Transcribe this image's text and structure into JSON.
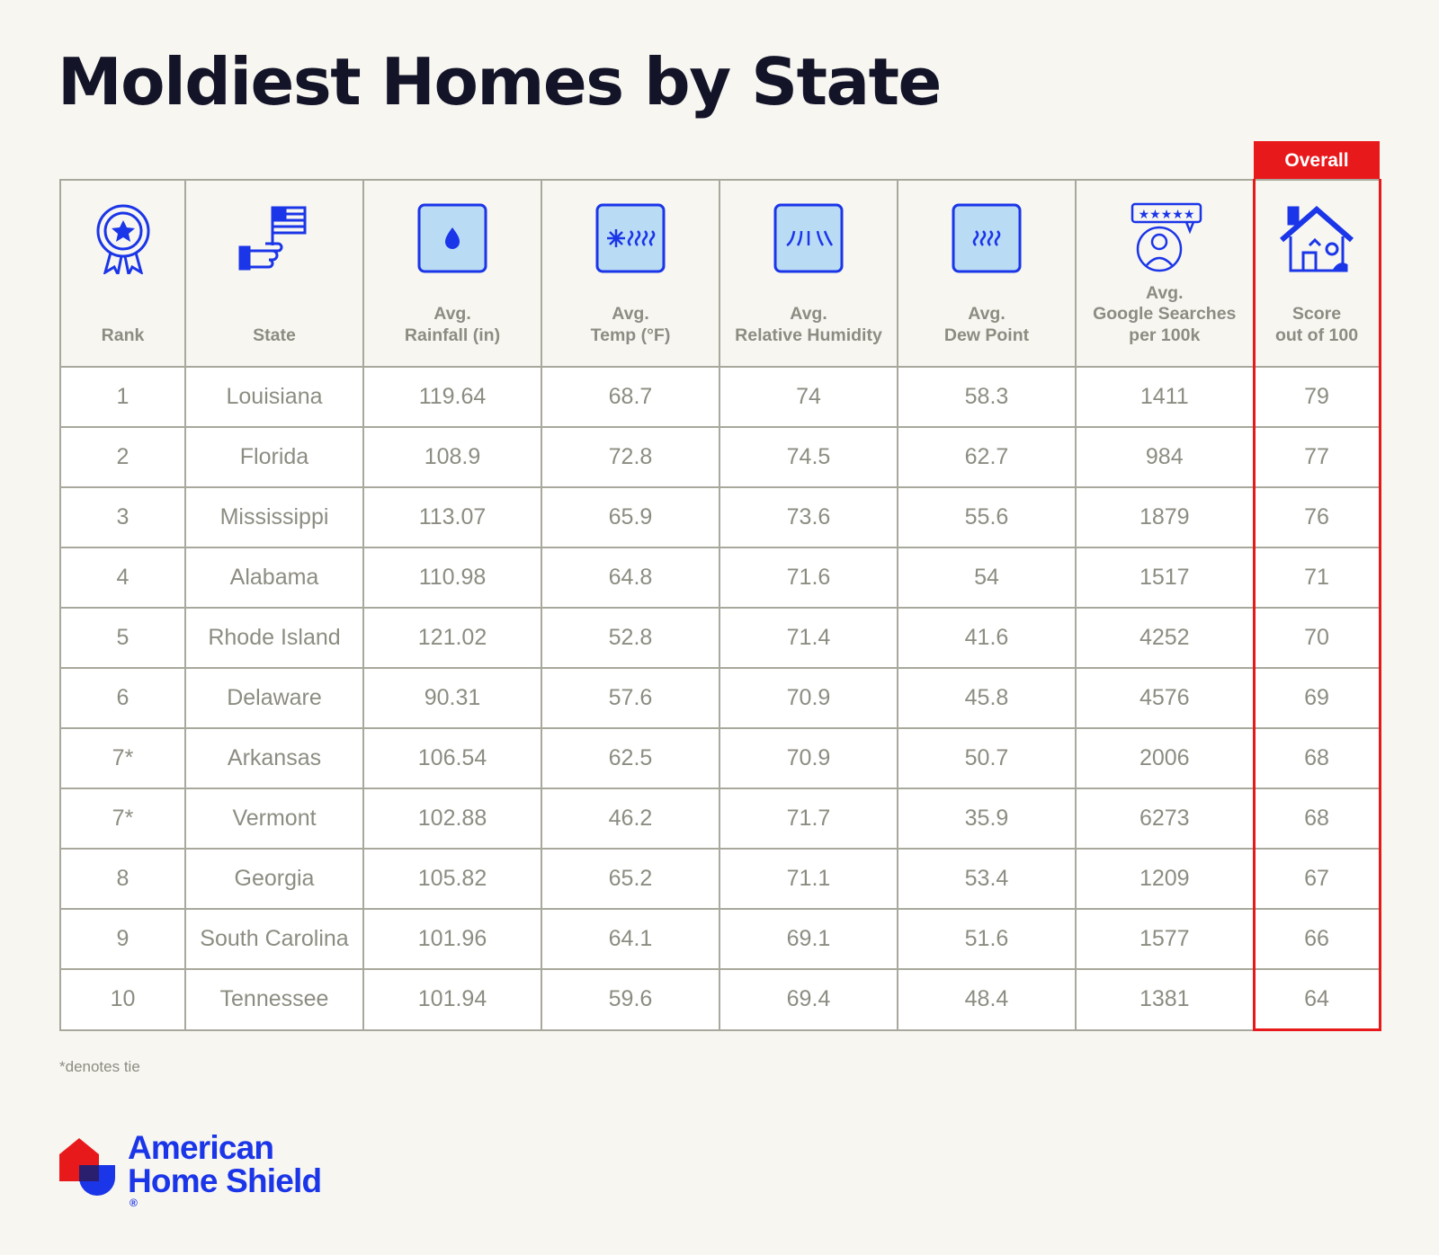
{
  "title": "Moldiest Homes by State",
  "overall_label": "Overall",
  "footnote": "*denotes tie",
  "brand": {
    "line1": "American",
    "line2": "Home Shield",
    "mark": "®"
  },
  "colors": {
    "accent_red": "#e8191b",
    "brand_blue": "#1b35e8",
    "icon_fill": "#b9dcf4"
  },
  "columns": [
    {
      "icon": "award-ribbon-icon",
      "lines": [
        "Rank"
      ]
    },
    {
      "icon": "hand-flag-icon",
      "lines": [
        "State"
      ]
    },
    {
      "icon": "raindrop-icon",
      "lines": [
        "Avg.",
        "Rainfall (in)"
      ]
    },
    {
      "icon": "sun-heat-icon",
      "lines": [
        "Avg.",
        "Temp (°F)"
      ]
    },
    {
      "icon": "humidity-icon",
      "lines": [
        "Avg.",
        "Relative Humidity"
      ]
    },
    {
      "icon": "heat-waves-icon",
      "lines": [
        "Avg.",
        "Dew Point"
      ]
    },
    {
      "icon": "review-person-icon",
      "lines": [
        "Avg.",
        "Google Searches",
        "per 100k"
      ]
    },
    {
      "icon": "house-icon",
      "lines": [
        "Score",
        "out of 100"
      ]
    }
  ],
  "chart_data": {
    "type": "table",
    "title": "Moldiest Homes by State",
    "headers": [
      "Rank",
      "State",
      "Avg. Rainfall (in)",
      "Avg. Temp (°F)",
      "Avg. Relative Humidity",
      "Avg. Dew Point",
      "Avg. Google Searches per 100k",
      "Score out of 100"
    ],
    "rows": [
      [
        "1",
        "Louisiana",
        "119.64",
        "68.7",
        "74",
        "58.3",
        "1411",
        "79"
      ],
      [
        "2",
        "Florida",
        "108.9",
        "72.8",
        "74.5",
        "62.7",
        "984",
        "77"
      ],
      [
        "3",
        "Mississippi",
        "113.07",
        "65.9",
        "73.6",
        "55.6",
        "1879",
        "76"
      ],
      [
        "4",
        "Alabama",
        "110.98",
        "64.8",
        "71.6",
        "54",
        "1517",
        "71"
      ],
      [
        "5",
        "Rhode Island",
        "121.02",
        "52.8",
        "71.4",
        "41.6",
        "4252",
        "70"
      ],
      [
        "6",
        "Delaware",
        "90.31",
        "57.6",
        "70.9",
        "45.8",
        "4576",
        "69"
      ],
      [
        "7*",
        "Arkansas",
        "106.54",
        "62.5",
        "70.9",
        "50.7",
        "2006",
        "68"
      ],
      [
        "7*",
        "Vermont",
        "102.88",
        "46.2",
        "71.7",
        "35.9",
        "6273",
        "68"
      ],
      [
        "8",
        "Georgia",
        "105.82",
        "65.2",
        "71.1",
        "53.4",
        "1209",
        "67"
      ],
      [
        "9",
        "South Carolina",
        "101.96",
        "64.1",
        "69.1",
        "51.6",
        "1577",
        "66"
      ],
      [
        "10",
        "Tennessee",
        "101.94",
        "59.6",
        "69.4",
        "48.4",
        "1381",
        "64"
      ]
    ]
  }
}
